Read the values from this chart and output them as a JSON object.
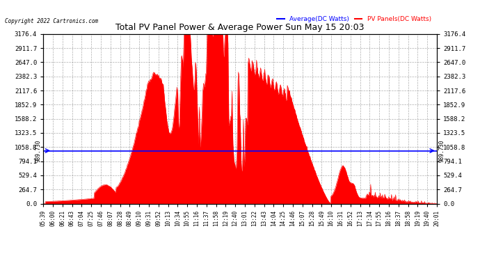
{
  "title": "Total PV Panel Power & Average Power Sun May 15 20:03",
  "copyright": "Copyright 2022 Cartronics.com",
  "legend_avg": "Average(DC Watts)",
  "legend_pv": "PV Panels(DC Watts)",
  "avg_value": 989.73,
  "y_max": 3176.4,
  "y_ticks": [
    0.0,
    264.7,
    529.4,
    794.1,
    1058.8,
    1323.5,
    1588.2,
    1852.9,
    2117.6,
    2382.3,
    2647.0,
    2911.7,
    3176.4
  ],
  "avg_label": "989.730",
  "fill_color": "#FF0000",
  "avg_line_color": "#0000FF",
  "background_color": "#FFFFFF",
  "grid_color": "#999999",
  "title_color": "#000000",
  "copyright_color": "#000000",
  "legend_avg_color": "#0000FF",
  "legend_pv_color": "#FF0000",
  "x_labels": [
    "05:39",
    "06:00",
    "06:21",
    "06:43",
    "07:04",
    "07:25",
    "07:46",
    "08:07",
    "08:28",
    "08:49",
    "09:10",
    "09:31",
    "09:52",
    "10:13",
    "10:34",
    "10:55",
    "11:16",
    "11:37",
    "11:58",
    "12:19",
    "12:40",
    "13:01",
    "13:22",
    "13:43",
    "14:04",
    "14:25",
    "14:46",
    "15:07",
    "15:28",
    "15:49",
    "16:10",
    "16:31",
    "16:52",
    "17:13",
    "17:34",
    "17:55",
    "18:16",
    "18:37",
    "18:58",
    "19:19",
    "19:40",
    "20:01"
  ]
}
